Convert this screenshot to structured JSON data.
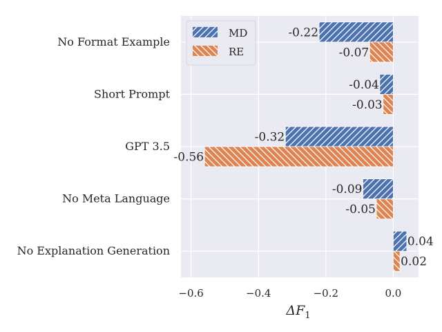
{
  "chart_data": {
    "type": "bar",
    "orientation": "horizontal",
    "title": "",
    "xlabel": "ΔF",
    "xlabel_subscript": "1",
    "ylabel": "",
    "xlim": [
      -0.63,
      0.075
    ],
    "xticks": [
      -0.6,
      -0.4,
      -0.2,
      0.0
    ],
    "xtick_labels": [
      "−0.6",
      "−0.4",
      "−0.2",
      "0.0"
    ],
    "grid": true,
    "legend_position": "top-left",
    "categories": [
      "No Format Example",
      "Short Prompt",
      "GPT 3.5",
      "No Meta Language",
      "No Explanation Generation"
    ],
    "series": [
      {
        "name": "MD",
        "color": "#4c72b0",
        "hatch": "forward",
        "values": [
          -0.22,
          -0.04,
          -0.32,
          -0.09,
          0.04
        ],
        "labels": [
          "-0.22",
          "-0.04",
          "-0.32",
          "-0.09",
          "0.04"
        ]
      },
      {
        "name": "RE",
        "color": "#dd8452",
        "hatch": "backward",
        "values": [
          -0.07,
          -0.03,
          -0.56,
          -0.05,
          0.02
        ],
        "labels": [
          "-0.07",
          "-0.03",
          "-0.56",
          "-0.05",
          "0.02"
        ]
      }
    ]
  }
}
